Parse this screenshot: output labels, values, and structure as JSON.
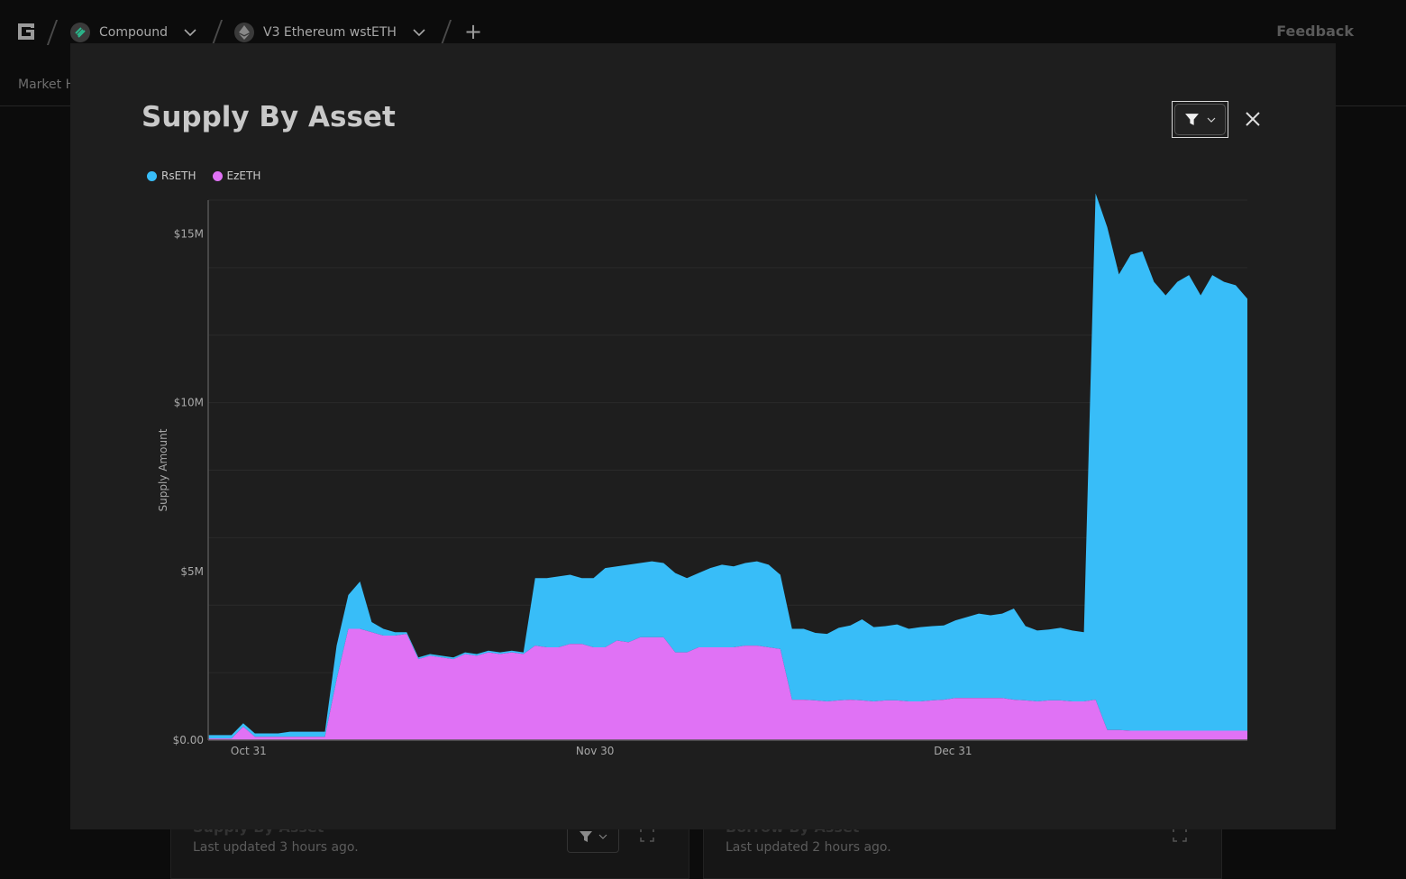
{
  "topbar": {
    "breadcrumb": [
      {
        "label": "Compound",
        "icon": "compound-icon"
      },
      {
        "label": "V3 Ethereum wstETH",
        "icon": "ethereum-icon"
      }
    ],
    "feedback_label": "Feedback"
  },
  "subnav": {
    "label": "Market H"
  },
  "background_cards": [
    {
      "title": "Supply By Asset",
      "updated": "Last updated 3 hours ago."
    },
    {
      "title": "Borrow By Asset",
      "updated": "Last updated 2 hours ago."
    }
  ],
  "modal": {
    "title": "Supply By Asset",
    "filter_icon": "filter-icon",
    "close_icon": "close-icon"
  },
  "colors": {
    "rseth": "#38bdf8",
    "ezeth": "#e072f5",
    "background": "#1e1e1e"
  },
  "chart_data": {
    "type": "area",
    "stacked": true,
    "ylabel": "Supply Amount",
    "xlabel": "",
    "yticks": [
      "$0.00",
      "$5M",
      "$10M",
      "$15M"
    ],
    "ytick_values": [
      0,
      5,
      10,
      15
    ],
    "y_unit": "M USD",
    "ylim": [
      0,
      16
    ],
    "xticks": [
      {
        "label": "Oct 31",
        "day": 3.5
      },
      {
        "label": "Nov 30",
        "day": 33.5
      },
      {
        "label": "Dec 31",
        "day": 64.5
      }
    ],
    "xlim": [
      0,
      90
    ],
    "legend_placement": "top-left",
    "grid": true,
    "series": [
      {
        "name": "EzETH",
        "color": "#e072f5",
        "values": [
          0.05,
          0.05,
          0.05,
          0.4,
          0.1,
          0.1,
          0.1,
          0.1,
          0.1,
          0.1,
          0.1,
          1.8,
          3.3,
          3.3,
          3.2,
          3.1,
          3.1,
          3.15,
          2.4,
          2.5,
          2.45,
          2.4,
          2.55,
          2.5,
          2.6,
          2.55,
          2.6,
          2.55,
          2.8,
          2.75,
          2.75,
          2.85,
          2.85,
          2.75,
          2.75,
          2.95,
          2.9,
          3.05,
          3.05,
          3.05,
          2.6,
          2.6,
          2.75,
          2.75,
          2.75,
          2.75,
          2.8,
          2.8,
          2.75,
          2.7,
          1.2,
          1.2,
          1.18,
          1.15,
          1.18,
          1.2,
          1.18,
          1.15,
          1.18,
          1.18,
          1.15,
          1.15,
          1.18,
          1.2,
          1.25,
          1.25,
          1.25,
          1.25,
          1.25,
          1.2,
          1.18,
          1.15,
          1.18,
          1.18,
          1.15,
          1.15,
          1.2,
          0.3,
          0.3,
          0.28,
          0.28,
          0.28,
          0.28,
          0.28,
          0.28,
          0.28,
          0.28,
          0.28,
          0.28,
          0.28
        ]
      },
      {
        "name": "RsETH",
        "color": "#38bdf8",
        "values": [
          0.1,
          0.1,
          0.1,
          0.1,
          0.1,
          0.1,
          0.1,
          0.15,
          0.15,
          0.15,
          0.15,
          1.0,
          1.0,
          1.4,
          0.3,
          0.2,
          0.1,
          0.05,
          0.05,
          0.05,
          0.05,
          0.05,
          0.05,
          0.05,
          0.05,
          0.05,
          0.05,
          0.05,
          2.0,
          2.05,
          2.1,
          2.05,
          1.95,
          2.05,
          2.35,
          2.2,
          2.3,
          2.2,
          2.25,
          2.2,
          2.35,
          2.2,
          2.2,
          2.35,
          2.45,
          2.4,
          2.45,
          2.5,
          2.45,
          2.2,
          2.1,
          2.1,
          2.0,
          2.0,
          2.15,
          2.2,
          2.4,
          2.2,
          2.2,
          2.25,
          2.15,
          2.2,
          2.2,
          2.2,
          2.3,
          2.4,
          2.5,
          2.45,
          2.5,
          2.7,
          2.2,
          2.1,
          2.1,
          2.15,
          2.1,
          2.05,
          15.0,
          14.9,
          13.5,
          14.1,
          14.2,
          13.3,
          12.9,
          13.3,
          13.5,
          12.9,
          13.5,
          13.3,
          13.2,
          12.8,
          11.9
        ]
      }
    ]
  }
}
